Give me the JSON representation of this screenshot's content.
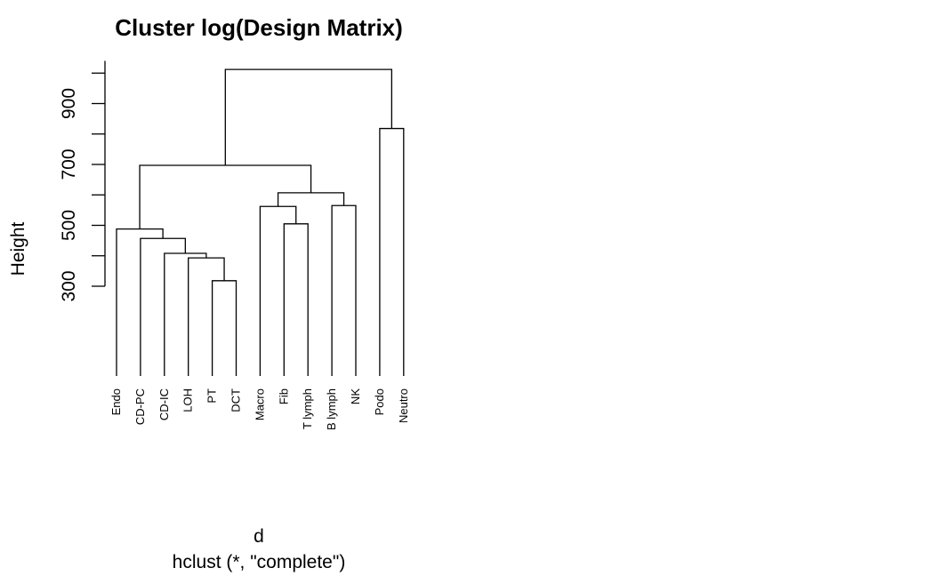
{
  "chart_data": {
    "type": "dendrogram",
    "title": "Cluster log(Design Matrix)",
    "ylabel": "Height",
    "xlabel": "d",
    "sub": "hclust (*, \"complete\")",
    "y_ticks": [
      300,
      500,
      700,
      900
    ],
    "ylim": [
      300,
      1000
    ],
    "labels": [
      "Endo",
      "CD-PC",
      "CD-IC",
      "LOH",
      "PT",
      "DCT",
      "Macro",
      "Fib",
      "T lymph",
      "B lymph",
      "NK",
      "Podo",
      "Neutro"
    ],
    "merges": [
      {
        "left": "PT",
        "right": "DCT",
        "height": 318
      },
      {
        "left": "LOH",
        "right": [
          "PT",
          "DCT"
        ],
        "height": 393
      },
      {
        "left": "CD-IC",
        "right": [
          "LOH",
          "PT",
          "DCT"
        ],
        "height": 408
      },
      {
        "left": "CD-PC",
        "right": [
          "CD-IC",
          "LOH",
          "PT",
          "DCT"
        ],
        "height": 457
      },
      {
        "left": "Endo",
        "right": [
          "CD-PC",
          "CD-IC",
          "LOH",
          "PT",
          "DCT"
        ],
        "height": 488
      },
      {
        "left": "Fib",
        "right": "T lymph",
        "height": 505
      },
      {
        "left": "Macro",
        "right": [
          "Fib",
          "T lymph"
        ],
        "height": 562
      },
      {
        "left": "B lymph",
        "right": "NK",
        "height": 565
      },
      {
        "left": [
          "Macro",
          "Fib",
          "T lymph"
        ],
        "right": [
          "B lymph",
          "NK"
        ],
        "height": 607
      },
      {
        "left": [
          "Endo",
          "CD-PC",
          "CD-IC",
          "LOH",
          "PT",
          "DCT"
        ],
        "right": [
          "Macro",
          "Fib",
          "T lymph",
          "B lymph",
          "NK"
        ],
        "height": 697
      },
      {
        "left": "Podo",
        "right": "Neutro",
        "height": 818
      },
      {
        "left": [
          "Endo",
          "CD-PC",
          "CD-IC",
          "LOH",
          "PT",
          "DCT",
          "Macro",
          "Fib",
          "T lymph",
          "B lymph",
          "NK"
        ],
        "right": [
          "Podo",
          "Neutro"
        ],
        "height": 1012
      }
    ],
    "leaf_bottom": 5
  }
}
